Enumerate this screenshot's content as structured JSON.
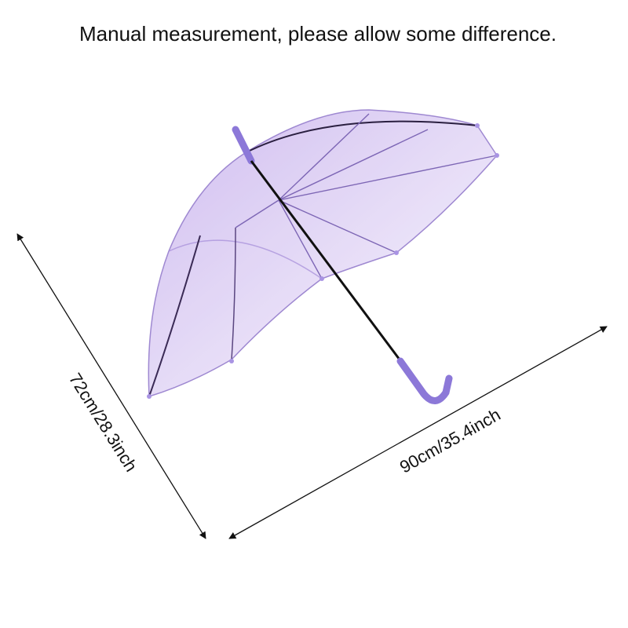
{
  "header": {
    "title": "Manual measurement, please allow some difference."
  },
  "dimensions": {
    "height": "72cm/28.3inch",
    "width": "90cm/35.4inch"
  }
}
